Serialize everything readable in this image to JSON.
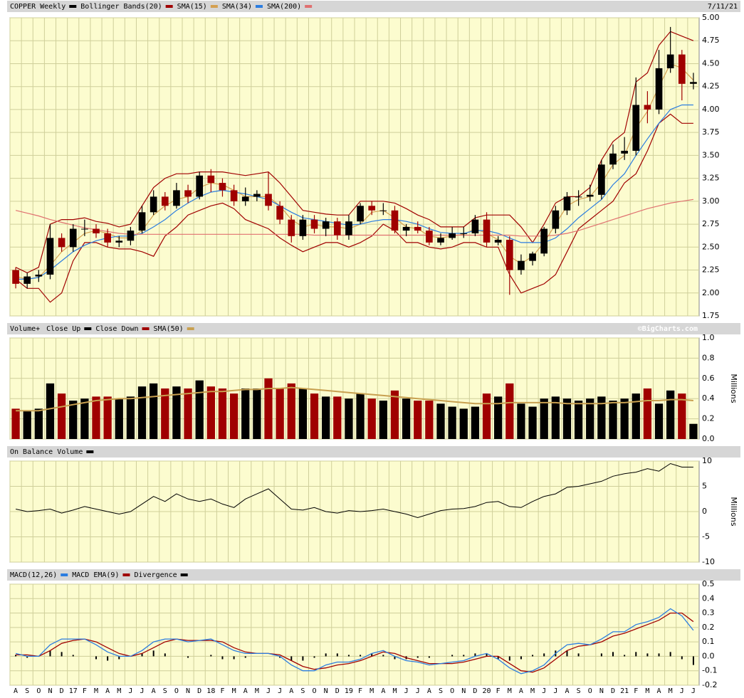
{
  "chart_data": [
    {
      "type": "candlestick",
      "title": "COPPER Weekly",
      "date": "7/11/21",
      "color": "#000000",
      "up_color": "#000000",
      "down_color": "#a00000",
      "open": [
        2.25,
        2.1,
        2.18,
        2.2,
        2.6,
        2.5,
        2.7,
        2.7,
        2.65,
        2.55,
        2.57,
        2.68,
        2.88,
        3.05,
        2.95,
        3.12,
        3.05,
        3.28,
        3.2,
        3.12,
        3.0,
        3.05,
        3.08,
        2.95,
        2.8,
        2.62,
        2.8,
        2.7,
        2.78,
        2.63,
        2.78,
        2.95,
        2.9,
        2.9,
        2.68,
        2.72,
        2.68,
        2.55,
        2.6,
        2.65,
        2.65,
        2.8,
        2.55,
        2.58,
        2.25,
        2.35,
        2.43,
        2.7,
        2.9,
        3.05,
        3.05,
        3.07,
        3.4,
        3.52,
        3.55,
        4.05,
        4.0,
        4.45,
        4.6,
        4.28
      ],
      "high": [
        2.28,
        2.22,
        2.25,
        2.75,
        2.65,
        2.75,
        2.8,
        2.75,
        2.7,
        2.62,
        2.72,
        2.95,
        3.12,
        3.1,
        3.2,
        3.18,
        3.32,
        3.35,
        3.25,
        3.18,
        3.15,
        3.12,
        3.32,
        3.0,
        2.85,
        2.85,
        2.85,
        2.82,
        2.82,
        2.85,
        2.98,
        3.0,
        2.98,
        2.95,
        2.75,
        2.78,
        2.72,
        2.65,
        2.72,
        2.72,
        2.85,
        2.88,
        2.62,
        2.62,
        2.42,
        2.45,
        2.72,
        2.95,
        3.1,
        3.12,
        3.18,
        3.45,
        3.62,
        3.7,
        4.35,
        4.2,
        4.65,
        4.9,
        4.65,
        4.4
      ],
      "low": [
        2.05,
        2.05,
        2.12,
        2.15,
        2.45,
        2.45,
        2.62,
        2.6,
        2.5,
        2.5,
        2.52,
        2.65,
        2.85,
        2.9,
        2.92,
        2.98,
        3.02,
        3.1,
        3.05,
        2.95,
        2.95,
        3.0,
        2.9,
        2.75,
        2.55,
        2.58,
        2.65,
        2.62,
        2.58,
        2.58,
        2.75,
        2.85,
        2.85,
        2.65,
        2.62,
        2.65,
        2.52,
        2.52,
        2.58,
        2.6,
        2.62,
        2.5,
        2.52,
        1.98,
        2.2,
        2.3,
        2.4,
        2.65,
        2.85,
        2.95,
        3.0,
        3.02,
        3.35,
        3.45,
        3.5,
        3.85,
        3.95,
        4.4,
        4.1,
        4.22
      ],
      "close": [
        2.1,
        2.18,
        2.2,
        2.6,
        2.5,
        2.7,
        2.7,
        2.65,
        2.55,
        2.57,
        2.68,
        2.88,
        3.05,
        2.95,
        3.12,
        3.05,
        3.28,
        3.2,
        3.12,
        3.0,
        3.05,
        3.08,
        2.95,
        2.8,
        2.62,
        2.8,
        2.7,
        2.78,
        2.63,
        2.78,
        2.95,
        2.9,
        2.9,
        2.68,
        2.72,
        2.68,
        2.55,
        2.6,
        2.65,
        2.65,
        2.8,
        2.55,
        2.58,
        2.25,
        2.35,
        2.43,
        2.7,
        2.9,
        3.05,
        3.05,
        3.07,
        3.4,
        3.52,
        3.55,
        4.05,
        4.0,
        4.45,
        4.6,
        4.28,
        4.3
      ],
      "series": [
        {
          "name": "Bollinger Bands(20)",
          "color": "#a00000",
          "upper": [
            2.28,
            2.22,
            2.28,
            2.75,
            2.8,
            2.8,
            2.82,
            2.78,
            2.76,
            2.72,
            2.75,
            2.95,
            3.15,
            3.25,
            3.3,
            3.3,
            3.32,
            3.32,
            3.32,
            3.3,
            3.28,
            3.3,
            3.32,
            3.2,
            3.05,
            2.9,
            2.88,
            2.86,
            2.85,
            2.85,
            3.0,
            3.0,
            3.0,
            2.98,
            2.92,
            2.85,
            2.8,
            2.72,
            2.72,
            2.72,
            2.82,
            2.85,
            2.85,
            2.85,
            2.72,
            2.55,
            2.75,
            2.98,
            3.05,
            3.05,
            3.15,
            3.45,
            3.65,
            3.75,
            4.3,
            4.4,
            4.7,
            4.85,
            4.8,
            4.75
          ],
          "lower": [
            2.15,
            2.05,
            2.05,
            1.9,
            2.0,
            2.35,
            2.55,
            2.55,
            2.5,
            2.48,
            2.48,
            2.45,
            2.4,
            2.62,
            2.72,
            2.85,
            2.9,
            2.95,
            2.98,
            2.92,
            2.8,
            2.75,
            2.7,
            2.6,
            2.52,
            2.45,
            2.5,
            2.55,
            2.55,
            2.5,
            2.55,
            2.62,
            2.75,
            2.68,
            2.55,
            2.55,
            2.5,
            2.48,
            2.5,
            2.55,
            2.55,
            2.5,
            2.5,
            2.2,
            2.0,
            2.05,
            2.1,
            2.2,
            2.45,
            2.7,
            2.8,
            2.9,
            3.0,
            3.2,
            3.3,
            3.55,
            3.85,
            3.95,
            3.85,
            3.85
          ]
        },
        {
          "name": "SMA(15)",
          "color": "#d4a050",
          "values": [
            2.18,
            2.15,
            2.17,
            2.3,
            2.45,
            2.55,
            2.65,
            2.68,
            2.65,
            2.6,
            2.6,
            2.68,
            2.85,
            2.95,
            3.02,
            3.05,
            3.15,
            3.2,
            3.18,
            3.12,
            3.05,
            3.05,
            3.05,
            2.95,
            2.8,
            2.72,
            2.75,
            2.72,
            2.72,
            2.7,
            2.75,
            2.88,
            2.9,
            2.82,
            2.72,
            2.7,
            2.62,
            2.6,
            2.62,
            2.64,
            2.7,
            2.65,
            2.58,
            2.4,
            2.32,
            2.4,
            2.55,
            2.75,
            2.95,
            3.02,
            3.05,
            3.2,
            3.4,
            3.5,
            3.8,
            3.98,
            4.25,
            4.5,
            4.45,
            4.32
          ]
        },
        {
          "name": "SMA(34)",
          "color": "#2b7de0",
          "values": [
            2.15,
            2.15,
            2.17,
            2.25,
            2.35,
            2.45,
            2.52,
            2.57,
            2.6,
            2.62,
            2.62,
            2.65,
            2.72,
            2.8,
            2.9,
            2.98,
            3.05,
            3.1,
            3.12,
            3.1,
            3.08,
            3.05,
            3.02,
            2.95,
            2.88,
            2.82,
            2.8,
            2.78,
            2.76,
            2.74,
            2.75,
            2.78,
            2.8,
            2.8,
            2.78,
            2.75,
            2.7,
            2.66,
            2.65,
            2.65,
            2.68,
            2.68,
            2.65,
            2.6,
            2.55,
            2.55,
            2.55,
            2.6,
            2.7,
            2.82,
            2.92,
            3.02,
            3.18,
            3.3,
            3.5,
            3.68,
            3.85,
            4.0,
            4.05,
            4.05
          ]
        },
        {
          "name": "SMA(200)",
          "color": "#e07070",
          "values": [
            2.9,
            2.87,
            2.84,
            2.8,
            2.77,
            2.74,
            2.71,
            2.69,
            2.67,
            2.65,
            2.64,
            2.64,
            2.64,
            2.64,
            2.64,
            2.64,
            2.64,
            2.64,
            2.64,
            2.64,
            2.64,
            2.64,
            2.64,
            2.64,
            2.64,
            2.64,
            2.63,
            2.63,
            2.63,
            2.63,
            2.63,
            2.63,
            2.63,
            2.63,
            2.63,
            2.63,
            2.63,
            2.63,
            2.63,
            2.63,
            2.63,
            2.63,
            2.63,
            2.63,
            2.62,
            2.62,
            2.62,
            2.63,
            2.65,
            2.68,
            2.72,
            2.76,
            2.8,
            2.84,
            2.88,
            2.92,
            2.95,
            2.98,
            3.0,
            3.02
          ]
        }
      ],
      "ylim": [
        1.75,
        5.0
      ],
      "yticks": [
        {
          "value": 1.75,
          "label": "1.75"
        },
        {
          "value": 2,
          "label": "2.00"
        },
        {
          "value": 2.25,
          "label": "2.25"
        },
        {
          "value": 2.5,
          "label": "2.50"
        },
        {
          "value": 2.75,
          "label": "2.75"
        },
        {
          "value": 3,
          "label": "3.00"
        },
        {
          "value": 3.25,
          "label": "3.25"
        },
        {
          "value": 3.5,
          "label": "3.50"
        },
        {
          "value": 3.75,
          "label": "3.75"
        },
        {
          "value": 4,
          "label": "4.00"
        },
        {
          "value": 4.25,
          "label": "4.25"
        },
        {
          "value": 4.5,
          "label": "4.50"
        },
        {
          "value": 4.75,
          "label": "4.75"
        },
        {
          "value": 5,
          "label": "5.00"
        }
      ],
      "grid": true
    },
    {
      "type": "bar",
      "title": "Volume+",
      "up_label": "Close Up",
      "down_label": "Close Down",
      "credit": "©BigCharts.com",
      "unit": "Millions",
      "values": [
        0.3,
        0.28,
        0.3,
        0.55,
        0.45,
        0.38,
        0.4,
        0.42,
        0.42,
        0.4,
        0.42,
        0.52,
        0.55,
        0.5,
        0.52,
        0.5,
        0.58,
        0.52,
        0.5,
        0.45,
        0.5,
        0.5,
        0.6,
        0.5,
        0.55,
        0.5,
        0.45,
        0.42,
        0.42,
        0.4,
        0.45,
        0.4,
        0.38,
        0.48,
        0.4,
        0.38,
        0.38,
        0.35,
        0.32,
        0.3,
        0.32,
        0.45,
        0.42,
        0.55,
        0.35,
        0.32,
        0.4,
        0.42,
        0.4,
        0.38,
        0.4,
        0.42,
        0.38,
        0.4,
        0.45,
        0.5,
        0.35,
        0.48,
        0.45,
        0.15
      ],
      "series": [
        {
          "name": "SMA(50)",
          "color": "#c8a050",
          "values": [
            0.28,
            0.28,
            0.28,
            0.3,
            0.32,
            0.34,
            0.36,
            0.38,
            0.39,
            0.4,
            0.4,
            0.41,
            0.42,
            0.43,
            0.44,
            0.45,
            0.46,
            0.47,
            0.47,
            0.48,
            0.49,
            0.49,
            0.5,
            0.5,
            0.51,
            0.5,
            0.49,
            0.48,
            0.47,
            0.46,
            0.45,
            0.44,
            0.43,
            0.42,
            0.41,
            0.4,
            0.39,
            0.38,
            0.37,
            0.36,
            0.35,
            0.35,
            0.35,
            0.36,
            0.36,
            0.36,
            0.36,
            0.36,
            0.35,
            0.35,
            0.35,
            0.35,
            0.36,
            0.36,
            0.37,
            0.38,
            0.38,
            0.39,
            0.39,
            0.38
          ]
        }
      ],
      "ylim": [
        0,
        1.0
      ],
      "yticks": [
        {
          "value": 0,
          "label": "0.0"
        },
        0.2,
        0.4,
        0.6,
        0.8,
        {
          "value": 1,
          "label": "1.0"
        }
      ],
      "grid": true
    },
    {
      "type": "line",
      "title": "On Balance Volume",
      "color": "#000000",
      "unit": "Millions",
      "values": [
        0.5,
        0,
        0.2,
        0.5,
        -0.3,
        0.3,
        1,
        0.5,
        0,
        -0.5,
        0,
        1.5,
        3,
        2,
        3.5,
        2.5,
        2,
        2.5,
        1.5,
        0.8,
        2.5,
        3.5,
        4.5,
        2.5,
        0.5,
        0.3,
        0.8,
        0,
        -0.3,
        0.2,
        0,
        0.2,
        0.5,
        0,
        -0.5,
        -1.2,
        -0.5,
        0.2,
        0.5,
        0.6,
        1,
        1.8,
        2,
        1,
        0.8,
        2,
        3,
        3.5,
        4.8,
        5,
        5.5,
        6,
        7,
        7.5,
        7.8,
        8.5,
        8,
        9.5,
        8.8,
        8.8
      ],
      "ylim": [
        -10,
        10
      ],
      "yticks": [
        -10,
        -5,
        0,
        5,
        10
      ],
      "grid": true
    },
    {
      "type": "macd",
      "series": [
        {
          "name": "MACD(12,26)",
          "color": "#2b7de0",
          "values": [
            0.02,
            0.0,
            0.0,
            0.08,
            0.12,
            0.12,
            0.12,
            0.08,
            0.03,
            0.0,
            0.0,
            0.04,
            0.1,
            0.12,
            0.12,
            0.1,
            0.11,
            0.12,
            0.08,
            0.04,
            0.02,
            0.02,
            0.02,
            0.0,
            -0.06,
            -0.1,
            -0.1,
            -0.06,
            -0.04,
            -0.04,
            -0.02,
            0.02,
            0.04,
            0.0,
            -0.03,
            -0.04,
            -0.06,
            -0.05,
            -0.04,
            -0.03,
            0.0,
            0.02,
            -0.02,
            -0.08,
            -0.12,
            -0.1,
            -0.06,
            0.02,
            0.08,
            0.09,
            0.08,
            0.12,
            0.17,
            0.17,
            0.22,
            0.24,
            0.27,
            0.33,
            0.28,
            0.18
          ]
        },
        {
          "name": "MACD EMA(9)",
          "color": "#a00000",
          "values": [
            0.01,
            0.01,
            0.0,
            0.04,
            0.09,
            0.11,
            0.12,
            0.1,
            0.06,
            0.02,
            0.0,
            0.02,
            0.06,
            0.1,
            0.12,
            0.11,
            0.11,
            0.11,
            0.1,
            0.06,
            0.03,
            0.02,
            0.02,
            0.01,
            -0.03,
            -0.07,
            -0.09,
            -0.08,
            -0.06,
            -0.05,
            -0.03,
            0.0,
            0.03,
            0.02,
            -0.01,
            -0.03,
            -0.05,
            -0.05,
            -0.05,
            -0.04,
            -0.02,
            0.0,
            0.0,
            -0.05,
            -0.1,
            -0.11,
            -0.08,
            -0.02,
            0.04,
            0.07,
            0.08,
            0.1,
            0.14,
            0.16,
            0.19,
            0.22,
            0.25,
            0.3,
            0.3,
            0.24
          ]
        },
        {
          "name": "Divergence",
          "color": "#000000",
          "values": [
            0.01,
            -0.01,
            0,
            0.04,
            0.03,
            0.01,
            0,
            -0.02,
            -0.03,
            -0.02,
            0,
            0.02,
            0.04,
            0.02,
            0,
            -0.01,
            0,
            0.01,
            -0.02,
            -0.02,
            -0.01,
            0,
            0,
            -0.01,
            -0.03,
            -0.03,
            -0.01,
            0.02,
            0.02,
            0.01,
            0.01,
            0.02,
            0.01,
            -0.02,
            -0.02,
            -0.01,
            -0.01,
            0,
            0.01,
            0.01,
            0.02,
            0.02,
            -0.02,
            -0.03,
            -0.02,
            0.01,
            0.02,
            0.04,
            0.04,
            0.02,
            0,
            0.02,
            0.03,
            0.01,
            0.03,
            0.02,
            0.02,
            0.03,
            -0.02,
            -0.06
          ]
        }
      ],
      "categories": [
        "A",
        "S",
        "O",
        "N",
        "D",
        "17",
        "F",
        "M",
        "A",
        "M",
        "J",
        "J",
        "A",
        "S",
        "O",
        "N",
        "D",
        "18",
        "F",
        "M",
        "A",
        "M",
        "J",
        "J",
        "A",
        "S",
        "O",
        "N",
        "D",
        "19",
        "F",
        "M",
        "A",
        "M",
        "J",
        "J",
        "A",
        "S",
        "O",
        "N",
        "D",
        "20",
        "F",
        "M",
        "A",
        "M",
        "J",
        "J",
        "A",
        "S",
        "O",
        "N",
        "D",
        "21",
        "F",
        "M",
        "A",
        "M",
        "J",
        "J"
      ],
      "ylim": [
        -0.2,
        0.5
      ],
      "yticks": [
        -0.2,
        -0.1,
        {
          "value": 0,
          "label": "0.0"
        },
        0.1,
        0.2,
        0.3,
        0.4,
        0.5
      ],
      "grid": true
    }
  ]
}
